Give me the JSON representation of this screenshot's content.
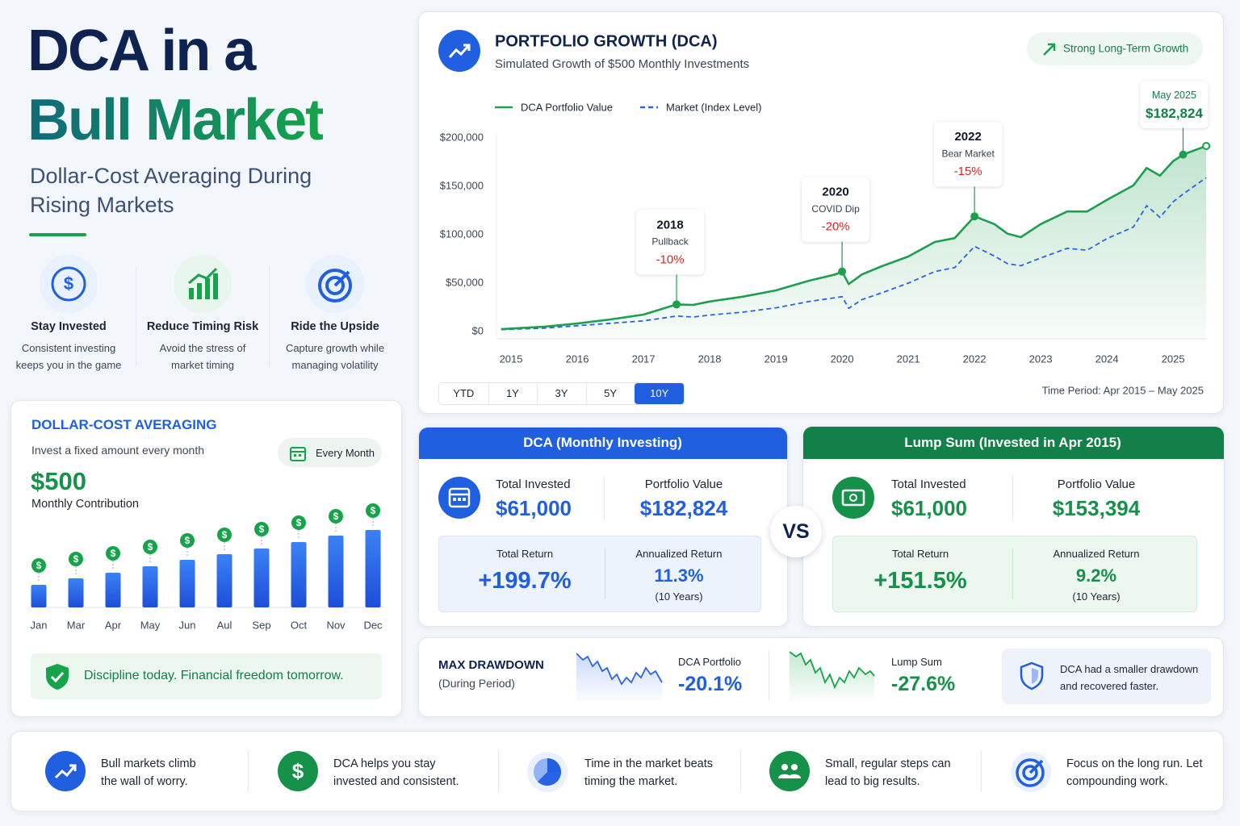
{
  "header": {
    "title_line1": "DCA in a",
    "title_line2": "Bull Market",
    "subtitle": "Dollar-Cost Averaging During Rising Markets"
  },
  "benefits": [
    {
      "title": "Stay Invested",
      "text": "Consistent investing keeps you in the game",
      "icon": "$"
    },
    {
      "title": "Reduce Timing Risk",
      "text": "Avoid the stress of market timing"
    },
    {
      "title": "Ride the Upside",
      "text": "Capture growth while managing volatility"
    }
  ],
  "dca_card": {
    "title": "DOLLAR-COST AVERAGING",
    "subtitle": "Invest a fixed amount every month",
    "badge": "Every Month",
    "amount": "$500",
    "amount_label": "Monthly Contribution",
    "footer": "Discipline today. Financial freedom tomorrow."
  },
  "chart_data": [
    {
      "type": "line",
      "title": "PORTFOLIO GROWTH (DCA)",
      "subtitle": "Simulated Growth of $500 Monthly Investments",
      "badge": "Strong Long-Term Growth",
      "x": [
        2014.85,
        2015.5,
        2016,
        2016.5,
        2017,
        2017.5,
        2017.75,
        2018,
        2018.5,
        2019,
        2019.5,
        2019.9,
        2020,
        2020.1,
        2020.3,
        2020.6,
        2021,
        2021.4,
        2021.7,
        2022,
        2022.3,
        2022.5,
        2022.7,
        2023,
        2023.4,
        2023.7,
        2024,
        2024.4,
        2024.6,
        2024.8,
        2025,
        2025.15,
        2025.5
      ],
      "series": [
        {
          "name": "DCA Portfolio Value",
          "color": "#1e9e4f",
          "dashed": false,
          "area": true,
          "values": [
            2500,
            5000,
            8300,
            12500,
            17500,
            28000,
            27500,
            31000,
            36000,
            42500,
            52500,
            59000,
            62000,
            49000,
            59000,
            67500,
            77500,
            92500,
            96500,
            119000,
            111000,
            101000,
            97500,
            111000,
            124000,
            124000,
            136000,
            151000,
            169000,
            161000,
            176000,
            182824,
            191700
          ]
        },
        {
          "name": "Market (Index Level)",
          "color": "#2b63e6",
          "dashed": true,
          "area": false,
          "values": [
            2000,
            3500,
            6000,
            8500,
            11000,
            16000,
            15000,
            17000,
            20000,
            24500,
            31000,
            35000,
            36000,
            24000,
            33000,
            40000,
            50000,
            62000,
            66000,
            88000,
            78000,
            70000,
            68000,
            76000,
            86000,
            84000,
            96000,
            108000,
            130000,
            118000,
            134000,
            142000,
            159000
          ]
        }
      ],
      "xlim": [
        2014.78,
        2025.51
      ],
      "xticks": [
        2015,
        2016,
        2017,
        2018,
        2019,
        2020,
        2021,
        2022,
        2023,
        2024,
        2025
      ],
      "ylim": [
        0,
        200000
      ],
      "yticks": [
        {
          "value": 0,
          "label": "$0"
        },
        {
          "value": 50000,
          "label": "$50,000"
        },
        {
          "value": 100000,
          "label": "$100,000"
        },
        {
          "value": 150000,
          "label": "$150,000"
        },
        {
          "value": 200000,
          "label": "$200,000"
        }
      ],
      "grid": false,
      "annotations": [
        {
          "title": "2018",
          "label": "Pullback",
          "change": "-10%"
        },
        {
          "title": "2020",
          "label": "COVID Dip",
          "change": "-20%"
        },
        {
          "title": "2022",
          "label": "Bear Market",
          "change": "-15%"
        },
        {
          "title": "May 2025",
          "change": "$182,824"
        }
      ],
      "range_buttons": [
        "YTD",
        "1Y",
        "3Y",
        "5Y",
        "10Y"
      ],
      "active_range": "10Y",
      "period": "Time Period: Apr 2015 – May 2025"
    },
    {
      "type": "bar",
      "categories": [
        "Jan",
        "Mar",
        "Apr",
        "May",
        "Jun",
        "Aul",
        "Sep",
        "Oct",
        "Nov",
        "Dec"
      ],
      "values": [
        28,
        36,
        43,
        51,
        59,
        66,
        73,
        81,
        89,
        96
      ],
      "ylim": [
        0,
        100
      ],
      "color": "#2563eb",
      "icon": "$"
    }
  ],
  "comparison": {
    "dca": {
      "title": "DCA (Monthly Investing)",
      "invested_label": "Total Invested",
      "invested": "$61,000",
      "value_label": "Portfolio Value",
      "value": "$182,824",
      "return_label": "Total Return",
      "return": "+199.7%",
      "annual_label": "Annualized Return",
      "annual": "11.3%",
      "annual_note": "(10 Years)"
    },
    "vs": "VS",
    "lump": {
      "title": "Lump Sum (Invested in Apr 2015)",
      "invested_label": "Total Invested",
      "invested": "$61,000",
      "value_label": "Portfolio Value",
      "value": "$153,394",
      "return_label": "Total Return",
      "return": "+151.5%",
      "annual_label": "Annualized Return",
      "annual": "9.2%",
      "annual_note": "(10 Years)"
    }
  },
  "drawdown": {
    "title": "MAX DRAWDOWN",
    "subtitle": "(During Period)",
    "dca_label": "DCA Portfolio",
    "dca": "-20.1%",
    "lump_label": "Lump Sum",
    "lump": "-27.6%",
    "note": "DCA had a smaller drawdown and recovered faster."
  },
  "tips": [
    {
      "text": "Bull markets climb the wall of worry."
    },
    {
      "icon": "$",
      "text": "DCA helps you stay invested and consistent."
    },
    {
      "text": "Time in the market beats timing the market."
    },
    {
      "text": "Small, regular steps can lead to big results."
    },
    {
      "text": "Focus on the long run. Let compounding work."
    }
  ]
}
